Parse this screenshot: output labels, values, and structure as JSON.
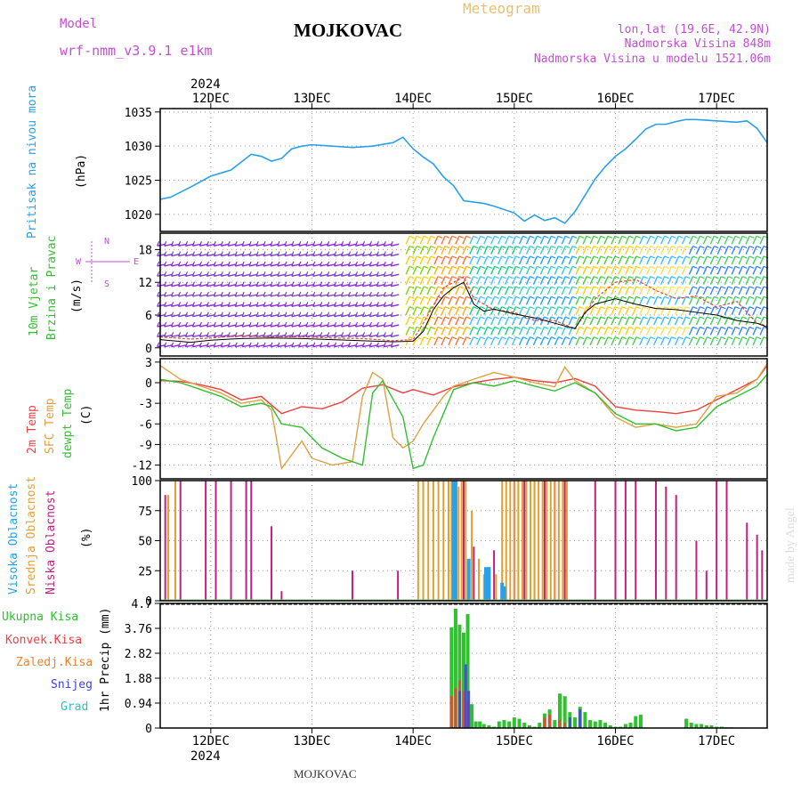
{
  "header": {
    "model_label": "Model",
    "model_name": "wrf-nmm_v3.9.1  e1km",
    "title": "MOJKOVAC",
    "product": "Meteogram",
    "coords": "lon,lat (19.6E, 42.9N)",
    "elevation": "Nadmorska Visina 848m",
    "model_elevation": "Nadmorska Visina u modelu 1521.06m"
  },
  "footer": {
    "station": "MOJKOVAC",
    "watermark": "made by Angel"
  },
  "colors": {
    "pressure": "#2aa0e8",
    "temp2m": "#ef4040",
    "sfc_temp": "#e0a040",
    "dewpoint": "#30c030",
    "high_cloud": "#2aa0e8",
    "mid_cloud": "#e0a030",
    "low_cloud": "#c02080",
    "precip_total": "#30c030",
    "precip_conv": "#ef4040",
    "precip_frz": "#f08030",
    "snow": "#4040e0",
    "hail": "#30c0c0",
    "model_text": "#c050d0",
    "product_text": "#e8c070"
  },
  "chart_data": [
    {
      "type": "line",
      "panel": "pressure",
      "ylabel_colored": "Pritisak na nivou mora",
      "unit": "(hPa)",
      "yticks": [
        1020,
        1025,
        1030,
        1035
      ],
      "ylim": [
        1017.5,
        1035.5
      ],
      "x_top_labels": [
        "12DEC",
        "13DEC",
        "14DEC",
        "15DEC",
        "16DEC",
        "17DEC"
      ],
      "year": "2024",
      "series": [
        {
          "key": "slp",
          "x": [
            11.5,
            11.6,
            11.8,
            12.0,
            12.2,
            12.4,
            12.5,
            12.6,
            12.7,
            12.8,
            12.9,
            13.0,
            13.2,
            13.4,
            13.6,
            13.8,
            13.9,
            14.0,
            14.1,
            14.2,
            14.3,
            14.4,
            14.5,
            14.6,
            14.7,
            14.8,
            15.0,
            15.1,
            15.2,
            15.3,
            15.4,
            15.5,
            15.6,
            15.7,
            15.8,
            15.9,
            16.0,
            16.1,
            16.2,
            16.3,
            16.4,
            16.5,
            16.6,
            16.7,
            16.8,
            16.9,
            17.0,
            17.2,
            17.3,
            17.4,
            17.5
          ],
          "y": [
            1022.2,
            1022.5,
            1024.0,
            1025.6,
            1026.5,
            1028.8,
            1028.5,
            1027.8,
            1028.2,
            1029.6,
            1030.0,
            1030.2,
            1030.0,
            1029.8,
            1030.0,
            1030.5,
            1031.3,
            1029.6,
            1028.4,
            1027.4,
            1025.5,
            1024.2,
            1022.0,
            1021.8,
            1021.6,
            1021.2,
            1020.2,
            1019.0,
            1019.9,
            1019.1,
            1019.5,
            1018.7,
            1020.4,
            1022.8,
            1025.2,
            1027.0,
            1028.5,
            1029.6,
            1031.0,
            1032.5,
            1033.2,
            1033.2,
            1033.6,
            1033.9,
            1033.9,
            1033.8,
            1033.7,
            1033.5,
            1033.7,
            1032.6,
            1030.5
          ]
        }
      ]
    },
    {
      "type": "line",
      "panel": "wind",
      "ylabel_colored": [
        "10m Vjetar",
        "Brzina i Pravac"
      ],
      "unit": "(m/s)",
      "compass": {
        "n": "N",
        "s": "S",
        "e": "E",
        "w": "W"
      },
      "yticks": [
        0,
        6,
        12,
        18
      ],
      "ylim": [
        -1.5,
        21
      ],
      "series": [
        {
          "key": "speed",
          "x": [
            11.5,
            11.8,
            12.0,
            12.3,
            12.6,
            12.9,
            13.2,
            13.5,
            13.8,
            14.0,
            14.1,
            14.2,
            14.3,
            14.4,
            14.5,
            14.6,
            14.7,
            14.8,
            15.0,
            15.2,
            15.4,
            15.6,
            15.7,
            15.8,
            16.0,
            16.2,
            16.4,
            16.6,
            16.8,
            17.0,
            17.2,
            17.4,
            17.5
          ],
          "y": [
            1.5,
            1.0,
            1.4,
            1.7,
            1.8,
            1.7,
            1.5,
            1.3,
            1.1,
            1.2,
            3.0,
            7.0,
            9.5,
            11.0,
            12.0,
            8.0,
            6.7,
            7.1,
            6.2,
            5.5,
            4.5,
            3.5,
            6.5,
            8.0,
            9.0,
            8.0,
            7.2,
            7.0,
            6.5,
            6.0,
            5.0,
            4.5,
            3.8
          ]
        },
        {
          "key": "gust",
          "x": [
            11.5,
            11.8,
            12.0,
            12.3,
            12.6,
            12.9,
            13.2,
            13.5,
            13.8,
            14.0,
            14.1,
            14.3,
            14.5,
            14.6,
            14.8,
            15.0,
            15.2,
            15.4,
            15.6,
            15.8,
            16.0,
            16.2,
            16.4,
            16.6,
            16.8,
            17.0,
            17.2,
            17.4,
            17.5
          ],
          "y": [
            2.0,
            1.6,
            1.8,
            2.2,
            2.0,
            2.0,
            1.8,
            1.7,
            1.3,
            1.5,
            4.5,
            11.0,
            13.0,
            9.0,
            7.0,
            6.5,
            5.0,
            5.0,
            3.5,
            9.0,
            12.0,
            12.5,
            10.5,
            9.0,
            9.5,
            7.5,
            8.5,
            4.5,
            4.0
          ]
        }
      ]
    },
    {
      "type": "line",
      "panel": "temperature",
      "ylabel_colored": [
        "2m Temp",
        "SFC Temp",
        "dewpt Temp"
      ],
      "unit": "(C)",
      "yticks": [
        -12,
        -9,
        -6,
        -3,
        0,
        3
      ],
      "ylim": [
        -14,
        3.5
      ],
      "series": [
        {
          "key": "t2m",
          "x": [
            11.5,
            11.7,
            11.9,
            12.1,
            12.3,
            12.5,
            12.7,
            12.9,
            13.1,
            13.3,
            13.5,
            13.7,
            13.9,
            14.0,
            14.2,
            14.4,
            14.6,
            14.8,
            15.0,
            15.2,
            15.4,
            15.6,
            15.8,
            16.0,
            16.2,
            16.4,
            16.6,
            16.8,
            17.0,
            17.2,
            17.4,
            17.5
          ],
          "y": [
            0.3,
            0.2,
            -0.3,
            -1.0,
            -2.5,
            -2.0,
            -4.5,
            -3.5,
            -3.8,
            -2.8,
            -0.8,
            -0.3,
            -1.5,
            -1.0,
            -1.8,
            -0.6,
            0.0,
            0.5,
            0.8,
            0.3,
            0.0,
            0.6,
            -0.5,
            -3.5,
            -4.0,
            -4.2,
            -4.5,
            -4.0,
            -2.5,
            -1.0,
            0.5,
            2.5
          ]
        },
        {
          "key": "tsfc",
          "x": [
            11.5,
            11.7,
            11.9,
            12.1,
            12.3,
            12.5,
            12.6,
            12.7,
            12.9,
            13.0,
            13.2,
            13.4,
            13.5,
            13.6,
            13.7,
            13.8,
            13.9,
            14.0,
            14.1,
            14.3,
            14.4,
            14.6,
            14.8,
            15.0,
            15.2,
            15.4,
            15.5,
            15.6,
            15.8,
            16.0,
            16.2,
            16.4,
            16.6,
            16.8,
            17.0,
            17.2,
            17.4,
            17.5
          ],
          "y": [
            2.5,
            0.5,
            -0.5,
            -1.5,
            -3.0,
            -2.5,
            -4.0,
            -12.5,
            -8.5,
            -11.0,
            -12.0,
            -11.5,
            -2.0,
            1.5,
            0.5,
            -8.0,
            -9.5,
            -8.5,
            -6.0,
            -2.0,
            -0.5,
            0.5,
            1.5,
            0.8,
            0.0,
            -0.6,
            2.3,
            0.3,
            -1.5,
            -5.0,
            -6.5,
            -6.0,
            -6.5,
            -6.0,
            -2.0,
            -1.5,
            0.5,
            2.8
          ]
        },
        {
          "key": "dew",
          "x": [
            11.5,
            11.7,
            11.9,
            12.1,
            12.3,
            12.5,
            12.6,
            12.7,
            12.9,
            13.1,
            13.3,
            13.5,
            13.6,
            13.7,
            13.9,
            14.0,
            14.1,
            14.2,
            14.3,
            14.4,
            14.6,
            14.8,
            15.0,
            15.2,
            15.4,
            15.6,
            15.8,
            16.0,
            16.2,
            16.4,
            16.6,
            16.8,
            17.0,
            17.2,
            17.4,
            17.5
          ],
          "y": [
            0.5,
            0.0,
            -1.0,
            -2.0,
            -3.5,
            -3.0,
            -3.5,
            -6.0,
            -6.5,
            -9.5,
            -11.0,
            -12.0,
            -1.5,
            0.3,
            -5.0,
            -12.5,
            -12.0,
            -8.0,
            -4.5,
            -1.0,
            0.0,
            -0.5,
            0.3,
            -0.5,
            -1.2,
            0.0,
            -1.5,
            -4.5,
            -6.0,
            -6.0,
            -7.0,
            -6.5,
            -3.5,
            -2.0,
            -0.5,
            1.2
          ]
        }
      ]
    },
    {
      "type": "bar",
      "panel": "clouds",
      "ylabel_colored": [
        "Visoka Oblacnost",
        "Srednja Oblacnost",
        "Niska Oblacnost"
      ],
      "unit": "(%)",
      "yticks": [
        0,
        25,
        50,
        75,
        100
      ],
      "ylim": [
        0,
        100
      ],
      "series": [
        {
          "key": "low",
          "x": [
            11.55,
            11.7,
            11.95,
            12.05,
            12.2,
            12.35,
            12.4,
            12.6,
            12.7,
            13.4,
            13.85,
            14.4,
            14.5,
            14.6,
            14.8,
            15.0,
            15.1,
            15.2,
            15.3,
            15.4,
            15.5,
            15.8,
            16.0,
            16.1,
            16.2,
            16.4,
            16.5,
            16.6,
            16.8,
            16.9,
            17.0,
            17.1,
            17.3,
            17.4,
            17.45
          ],
          "y": [
            88,
            100,
            100,
            100,
            100,
            100,
            100,
            62,
            8,
            25,
            25,
            100,
            100,
            45,
            42,
            100,
            100,
            100,
            100,
            100,
            100,
            100,
            100,
            100,
            100,
            100,
            95,
            88,
            50,
            25,
            100,
            100,
            65,
            55,
            42
          ]
        },
        {
          "key": "mid",
          "x": [
            11.58,
            11.65,
            14.05,
            14.1,
            14.15,
            14.2,
            14.25,
            14.3,
            14.35,
            14.38,
            14.42,
            14.45,
            14.48,
            14.52,
            14.58,
            14.65,
            14.7,
            14.75,
            14.82,
            14.88,
            14.92,
            14.96,
            15.0,
            15.04,
            15.08,
            15.12,
            15.16,
            15.2,
            15.24,
            15.28,
            15.32,
            15.36,
            15.4,
            15.44,
            15.48,
            15.52
          ],
          "y": [
            88,
            100,
            100,
            100,
            100,
            100,
            100,
            100,
            100,
            100,
            100,
            95,
            100,
            100,
            75,
            35,
            22,
            28,
            22,
            100,
            100,
            100,
            100,
            100,
            100,
            100,
            100,
            100,
            100,
            100,
            100,
            100,
            100,
            100,
            100,
            100
          ]
        },
        {
          "key": "high",
          "x": [
            14.4,
            14.42,
            14.55,
            14.72,
            14.75,
            14.88,
            14.9
          ],
          "y": [
            100,
            100,
            35,
            28,
            28,
            15,
            12
          ]
        }
      ]
    },
    {
      "type": "bar",
      "panel": "precipitation",
      "ylabel_colored": [
        "Ukupna  Kisa",
        "Konvek.Kisa",
        "Zaledj.Kisa",
        "Snijeg",
        "Grad"
      ],
      "unit": "1hr Precip  (mm)",
      "yticks": [
        0,
        0.94,
        1.88,
        2.82,
        3.76,
        4.7
      ],
      "ylim": [
        0,
        4.7
      ],
      "x_bottom_labels": [
        "12DEC",
        "13DEC",
        "14DEC",
        "15DEC",
        "16DEC",
        "17DEC"
      ],
      "year": "2024",
      "series": [
        {
          "key": "total",
          "x": [
            14.38,
            14.42,
            14.46,
            14.5,
            14.54,
            14.58,
            14.62,
            14.66,
            14.7,
            14.75,
            14.8,
            14.85,
            14.9,
            14.95,
            15.0,
            15.05,
            15.1,
            15.15,
            15.2,
            15.25,
            15.3,
            15.35,
            15.4,
            15.45,
            15.5,
            15.55,
            15.6,
            15.65,
            15.7,
            15.75,
            15.8,
            15.85,
            15.9,
            15.95,
            16.0,
            16.05,
            16.1,
            16.15,
            16.2,
            16.25,
            16.7,
            16.75,
            16.8,
            16.85,
            16.9,
            16.95,
            17.0,
            17.05,
            17.1,
            17.15,
            17.2,
            17.25
          ],
          "y": [
            3.8,
            4.5,
            3.9,
            3.6,
            4.3,
            0.9,
            0.25,
            0.25,
            0.15,
            0.1,
            0.05,
            0.25,
            0.3,
            0.25,
            0.4,
            0.35,
            0.2,
            0.1,
            0.05,
            0.2,
            0.55,
            0.7,
            0.3,
            1.3,
            1.2,
            0.6,
            0.4,
            0.8,
            0.6,
            0.3,
            0.25,
            0.3,
            0.2,
            0.1,
            0.05,
            0.05,
            0.15,
            0.2,
            0.45,
            0.5,
            0.35,
            0.2,
            0.15,
            0.15,
            0.1,
            0.1,
            0.05,
            0.05,
            0.03,
            0.03,
            0.02,
            0.02
          ]
        },
        {
          "key": "conv",
          "x": [
            14.38,
            14.42,
            14.46,
            14.5,
            14.54,
            15.3,
            15.35,
            15.45,
            15.5
          ],
          "y": [
            1.2,
            1.5,
            1.8,
            1.4,
            1.0,
            0.4,
            0.5,
            0.3,
            0.2
          ]
        },
        {
          "key": "snow",
          "x": [
            14.46,
            14.52,
            14.55,
            15.55,
            15.65
          ],
          "y": [
            1.4,
            2.4,
            1.4,
            0.4,
            0.7
          ]
        }
      ]
    }
  ]
}
